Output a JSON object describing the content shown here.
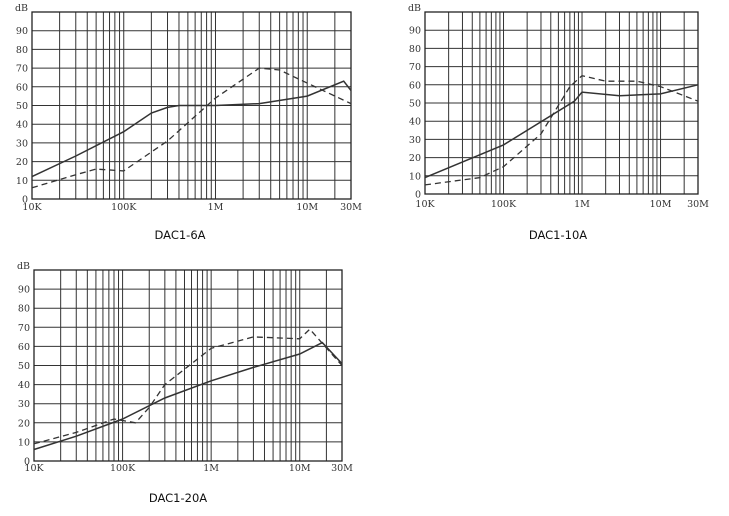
{
  "chart_data": [
    {
      "type": "line",
      "title": "DAC1-6A",
      "ylabel": "dB",
      "xscale": "log",
      "xlim": [
        10000,
        30000000
      ],
      "ylim": [
        0,
        100
      ],
      "x_tick_labels": [
        "10K",
        "100K",
        "1M",
        "10M",
        "30M"
      ],
      "y_tick_labels": [
        "0",
        "10",
        "20",
        "30",
        "40",
        "50",
        "60",
        "70",
        "80",
        "90"
      ],
      "grid": true,
      "series": [
        {
          "style": "solid",
          "x": [
            10000,
            30000,
            100000,
            200000,
            300000,
            400000,
            1000000,
            3000000,
            10000000,
            25000000,
            30000000
          ],
          "y": [
            12,
            23,
            36,
            46,
            49,
            50,
            50,
            51,
            55,
            63,
            58
          ]
        },
        {
          "style": "dashed",
          "x": [
            10000,
            30000,
            50000,
            100000,
            300000,
            1000000,
            3000000,
            5000000,
            10000000,
            30000000
          ],
          "y": [
            6,
            13,
            16,
            15,
            31,
            54,
            70,
            69,
            62,
            51
          ]
        }
      ]
    },
    {
      "type": "line",
      "title": "DAC1-10A",
      "ylabel": "dB",
      "xscale": "log",
      "xlim": [
        10000,
        30000000
      ],
      "ylim": [
        0,
        100
      ],
      "x_tick_labels": [
        "10K",
        "100K",
        "1M",
        "10M",
        "30M"
      ],
      "y_tick_labels": [
        "0",
        "10",
        "20",
        "30",
        "40",
        "50",
        "60",
        "70",
        "80",
        "90"
      ],
      "grid": true,
      "series": [
        {
          "style": "solid",
          "x": [
            10000,
            100000,
            800000,
            1000000,
            3000000,
            10000000,
            30000000
          ],
          "y": [
            9,
            27,
            51,
            56,
            54,
            55,
            60
          ]
        },
        {
          "style": "dashed",
          "x": [
            10000,
            50000,
            100000,
            300000,
            700000,
            1000000,
            2000000,
            5000000,
            10000000,
            30000000
          ],
          "y": [
            5,
            9,
            15,
            33,
            59,
            65,
            62,
            62,
            59,
            51
          ]
        }
      ]
    },
    {
      "type": "line",
      "title": "DAC1-20A",
      "ylabel": "dB",
      "xscale": "log",
      "xlim": [
        10000,
        30000000
      ],
      "ylim": [
        0,
        100
      ],
      "x_tick_labels": [
        "10K",
        "100K",
        "1M",
        "10M",
        "30M"
      ],
      "y_tick_labels": [
        "0",
        "10",
        "20",
        "30",
        "40",
        "50",
        "60",
        "70",
        "80",
        "90"
      ],
      "grid": true,
      "series": [
        {
          "style": "solid",
          "x": [
            10000,
            30000,
            100000,
            300000,
            1000000,
            3000000,
            10000000,
            18000000,
            30000000
          ],
          "y": [
            6,
            13,
            22,
            33,
            42,
            49,
            56,
            62,
            51
          ]
        },
        {
          "style": "dashed",
          "x": [
            10000,
            30000,
            80000,
            140000,
            200000,
            300000,
            1000000,
            3000000,
            10000000,
            13000000,
            30000000
          ],
          "y": [
            9,
            15,
            22,
            20,
            28,
            40,
            59,
            65,
            64,
            69,
            50
          ]
        }
      ]
    }
  ]
}
